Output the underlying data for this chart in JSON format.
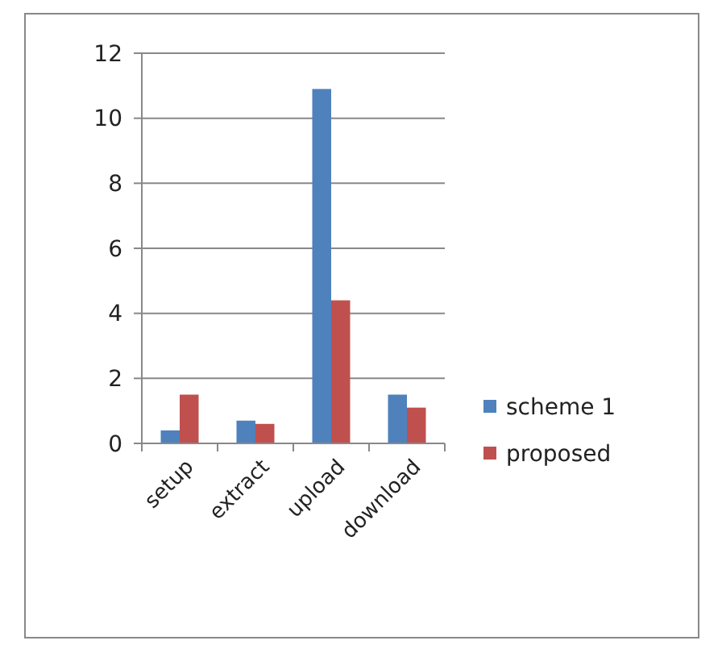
{
  "chart_data": {
    "type": "bar",
    "categories": [
      "setup",
      "extract",
      "upload",
      "download"
    ],
    "series": [
      {
        "name": "scheme 1",
        "color": "#4f81bd",
        "values": [
          0.4,
          0.7,
          10.9,
          1.5
        ]
      },
      {
        "name": "proposed",
        "color": "#c0504d",
        "values": [
          1.5,
          0.6,
          4.4,
          1.1
        ]
      }
    ],
    "ylim": [
      0,
      12
    ],
    "yticks": [
      0,
      2,
      4,
      6,
      8,
      10,
      12
    ],
    "grid": "y",
    "legend": "right"
  }
}
